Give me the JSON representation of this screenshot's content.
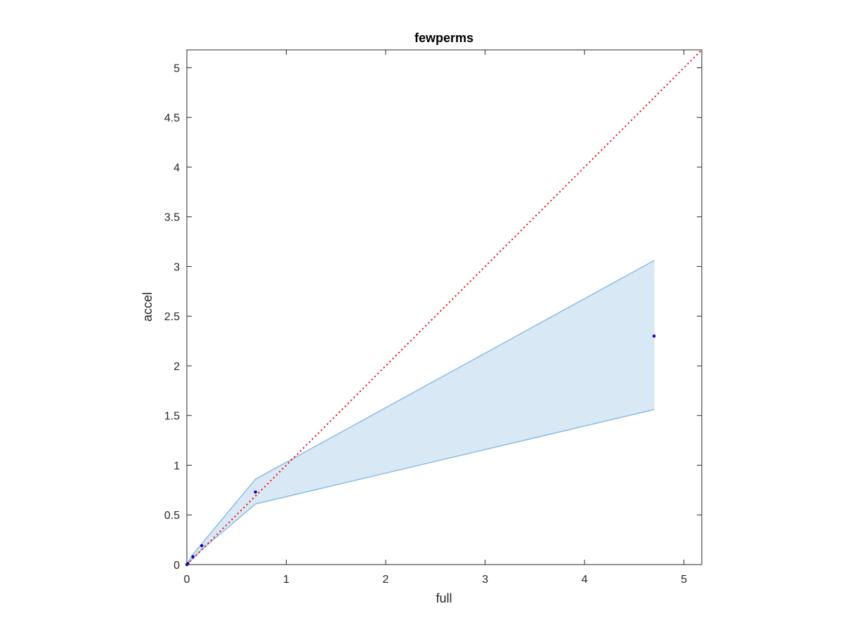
{
  "chart_data": {
    "type": "line",
    "title": "fewperms",
    "xlabel": "full",
    "ylabel": "accel",
    "xlim": [
      0,
      5.18
    ],
    "ylim": [
      0,
      5.18
    ],
    "xticks": [
      0,
      1,
      2,
      3,
      4,
      5
    ],
    "xtick_labels": [
      "0",
      "1",
      "2",
      "3",
      "4",
      "5"
    ],
    "yticks": [
      0,
      0.5,
      1,
      1.5,
      2,
      2.5,
      3,
      3.5,
      4,
      4.5,
      5
    ],
    "ytick_labels": [
      "0",
      "0.5",
      "1",
      "1.5",
      "2",
      "2.5",
      "3",
      "3.5",
      "4",
      "4.5",
      "5"
    ],
    "grid": false,
    "legend": "none",
    "band": {
      "x": [
        0.0,
        0.01,
        0.06,
        0.15,
        0.69,
        4.7
      ],
      "upper": [
        0.0,
        0.02,
        0.1,
        0.21,
        0.86,
        3.06
      ],
      "lower": [
        0.0,
        0.01,
        0.06,
        0.15,
        0.61,
        1.56
      ],
      "fill_color": "#d9e8f5",
      "line_color": "#8bbde0"
    },
    "points": {
      "x": [
        0.0,
        0.01,
        0.06,
        0.15,
        0.69,
        4.7
      ],
      "y": [
        0.0,
        0.01,
        0.08,
        0.19,
        0.73,
        2.3
      ],
      "color": "#0000cc"
    },
    "reference_line": {
      "x": [
        0,
        5.18
      ],
      "y": [
        0,
        5.18
      ],
      "color": "#ff0000",
      "style": "dotted"
    }
  }
}
